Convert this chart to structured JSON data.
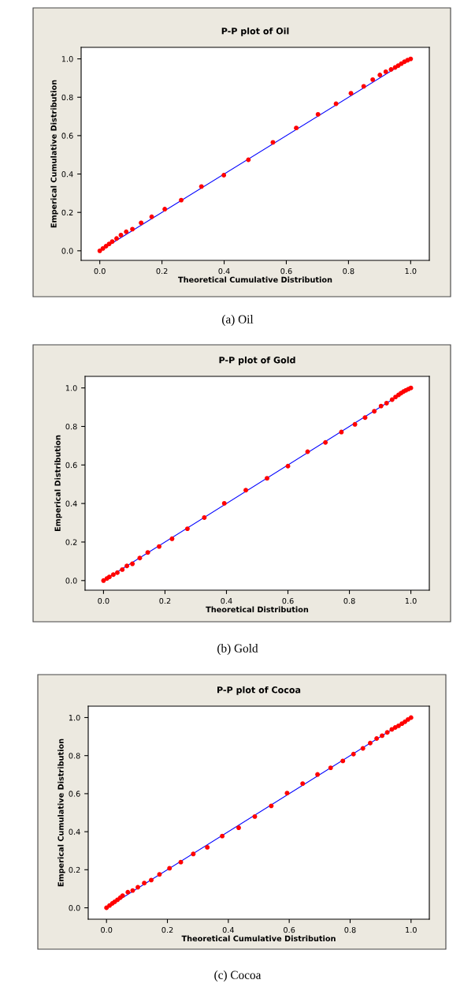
{
  "chart_data": [
    {
      "type": "scatter",
      "title": "P-P plot of Oil",
      "xlabel": "Theoretical Cumulative Distribution",
      "ylabel": "Emperical Cumulative Distribution",
      "annotations": [
        "(a) Oil"
      ],
      "marker": "circle",
      "grid": false,
      "xlim": [
        -0.06,
        1.06
      ],
      "ylim": [
        -0.05,
        1.06
      ],
      "xticks": [
        {
          "value": 0,
          "label": "0.0"
        },
        {
          "value": 0.2,
          "label": "0.2"
        },
        {
          "value": 0.4,
          "label": "0.4"
        },
        {
          "value": 0.6,
          "label": "0.6"
        },
        {
          "value": 0.8,
          "label": "0.8"
        },
        {
          "value": 1,
          "label": "1.0"
        }
      ],
      "yticks": [
        {
          "value": 0,
          "label": "0.0"
        },
        {
          "value": 0.2,
          "label": "0.2"
        },
        {
          "value": 0.4,
          "label": "0.4"
        },
        {
          "value": 0.6,
          "label": "0.6"
        },
        {
          "value": 0.8,
          "label": "0.8"
        },
        {
          "value": 1,
          "label": "1.0"
        }
      ],
      "series": [
        {
          "type": "line",
          "marker": "none",
          "color": "#0000ff",
          "x": [
            0,
            1
          ],
          "values": [
            0,
            1
          ]
        },
        {
          "color": "#ff0000",
          "x": [
            0,
            0.01,
            0.02,
            0.03,
            0.04,
            0.054,
            0.068,
            0.085,
            0.105,
            0.133,
            0.167,
            0.209,
            0.262,
            0.327,
            0.399,
            0.478,
            0.557,
            0.632,
            0.702,
            0.76,
            0.808,
            0.849,
            0.878,
            0.901,
            0.92,
            0.937,
            0.95,
            0.96,
            0.97,
            0.98,
            0.99,
            1.0
          ],
          "values": [
            0,
            0.012,
            0.024,
            0.036,
            0.048,
            0.064,
            0.082,
            0.099,
            0.113,
            0.146,
            0.177,
            0.217,
            0.264,
            0.335,
            0.394,
            0.474,
            0.565,
            0.64,
            0.711,
            0.766,
            0.821,
            0.857,
            0.892,
            0.916,
            0.933,
            0.945,
            0.955,
            0.965,
            0.975,
            0.985,
            0.993,
            1.0
          ]
        }
      ]
    },
    {
      "type": "scatter",
      "title": "P-P plot of Gold",
      "xlabel": "Theoretical Distribution",
      "ylabel": "Emperical Distribution",
      "annotations": [
        "(b) Gold"
      ],
      "marker": "circle",
      "grid": false,
      "xlim": [
        -0.06,
        1.06
      ],
      "ylim": [
        -0.05,
        1.06
      ],
      "xticks": [
        {
          "value": 0,
          "label": "0.0"
        },
        {
          "value": 0.2,
          "label": "0.2"
        },
        {
          "value": 0.4,
          "label": "0.4"
        },
        {
          "value": 0.6,
          "label": "0.6"
        },
        {
          "value": 0.8,
          "label": "0.8"
        },
        {
          "value": 1,
          "label": "1.0"
        }
      ],
      "yticks": [
        {
          "value": 0,
          "label": "0.0"
        },
        {
          "value": 0.2,
          "label": "0.2"
        },
        {
          "value": 0.4,
          "label": "0.4"
        },
        {
          "value": 0.6,
          "label": "0.6"
        },
        {
          "value": 0.8,
          "label": "0.8"
        },
        {
          "value": 1,
          "label": "1.0"
        }
      ],
      "series": [
        {
          "type": "line",
          "marker": "none",
          "color": "#0000ff",
          "x": [
            0,
            1
          ],
          "values": [
            0,
            1
          ]
        },
        {
          "color": "#ff0000",
          "x": [
            0,
            0.011,
            0.019,
            0.032,
            0.045,
            0.061,
            0.076,
            0.094,
            0.118,
            0.144,
            0.181,
            0.223,
            0.273,
            0.328,
            0.393,
            0.463,
            0.532,
            0.6,
            0.664,
            0.722,
            0.774,
            0.818,
            0.851,
            0.881,
            0.903,
            0.921,
            0.939,
            0.95,
            0.96,
            0.968,
            0.976,
            0.984,
            0.992,
            1.0
          ],
          "values": [
            0,
            0.011,
            0.019,
            0.031,
            0.041,
            0.057,
            0.076,
            0.087,
            0.117,
            0.146,
            0.177,
            0.217,
            0.269,
            0.327,
            0.401,
            0.469,
            0.531,
            0.594,
            0.669,
            0.717,
            0.771,
            0.811,
            0.846,
            0.879,
            0.906,
            0.921,
            0.939,
            0.953,
            0.964,
            0.973,
            0.981,
            0.988,
            0.994,
            1.0
          ]
        }
      ]
    },
    {
      "type": "scatter",
      "title": "P-P plot of Cocoa",
      "xlabel": "Theoretical Cumulative Distribution",
      "ylabel": "Emperical Cumulative Distribution",
      "annotations": [
        "(c) Cocoa"
      ],
      "marker": "circle",
      "grid": false,
      "xlim": [
        -0.06,
        1.06
      ],
      "ylim": [
        -0.06,
        1.06
      ],
      "xticks": [
        {
          "value": 0,
          "label": "0.0"
        },
        {
          "value": 0.2,
          "label": "0.2"
        },
        {
          "value": 0.4,
          "label": "0.4"
        },
        {
          "value": 0.6,
          "label": "0.6"
        },
        {
          "value": 0.8,
          "label": "0.8"
        },
        {
          "value": 1,
          "label": "1.0"
        }
      ],
      "yticks": [
        {
          "value": 0,
          "label": "0.0"
        },
        {
          "value": 0.2,
          "label": "0.2"
        },
        {
          "value": 0.4,
          "label": "0.4"
        },
        {
          "value": 0.6,
          "label": "0.6"
        },
        {
          "value": 0.8,
          "label": "0.8"
        },
        {
          "value": 1,
          "label": "1.0"
        }
      ],
      "series": [
        {
          "type": "line",
          "marker": "none",
          "color": "#0000ff",
          "x": [
            0,
            1
          ],
          "values": [
            0,
            1
          ]
        },
        {
          "color": "#ff0000",
          "x": [
            0,
            0.01,
            0.019,
            0.027,
            0.036,
            0.045,
            0.053,
            0.07,
            0.086,
            0.103,
            0.124,
            0.147,
            0.174,
            0.207,
            0.244,
            0.285,
            0.331,
            0.38,
            0.434,
            0.487,
            0.541,
            0.593,
            0.644,
            0.693,
            0.736,
            0.776,
            0.811,
            0.842,
            0.866,
            0.887,
            0.905,
            0.922,
            0.937,
            0.948,
            0.959,
            0.97,
            0.98,
            0.99,
            1.0
          ],
          "values": [
            0,
            0.012,
            0.023,
            0.032,
            0.042,
            0.053,
            0.064,
            0.082,
            0.091,
            0.108,
            0.13,
            0.146,
            0.176,
            0.208,
            0.24,
            0.283,
            0.318,
            0.377,
            0.421,
            0.48,
            0.536,
            0.603,
            0.653,
            0.701,
            0.736,
            0.772,
            0.808,
            0.838,
            0.866,
            0.89,
            0.905,
            0.922,
            0.938,
            0.948,
            0.957,
            0.968,
            0.978,
            0.99,
            1.0
          ]
        }
      ]
    }
  ]
}
